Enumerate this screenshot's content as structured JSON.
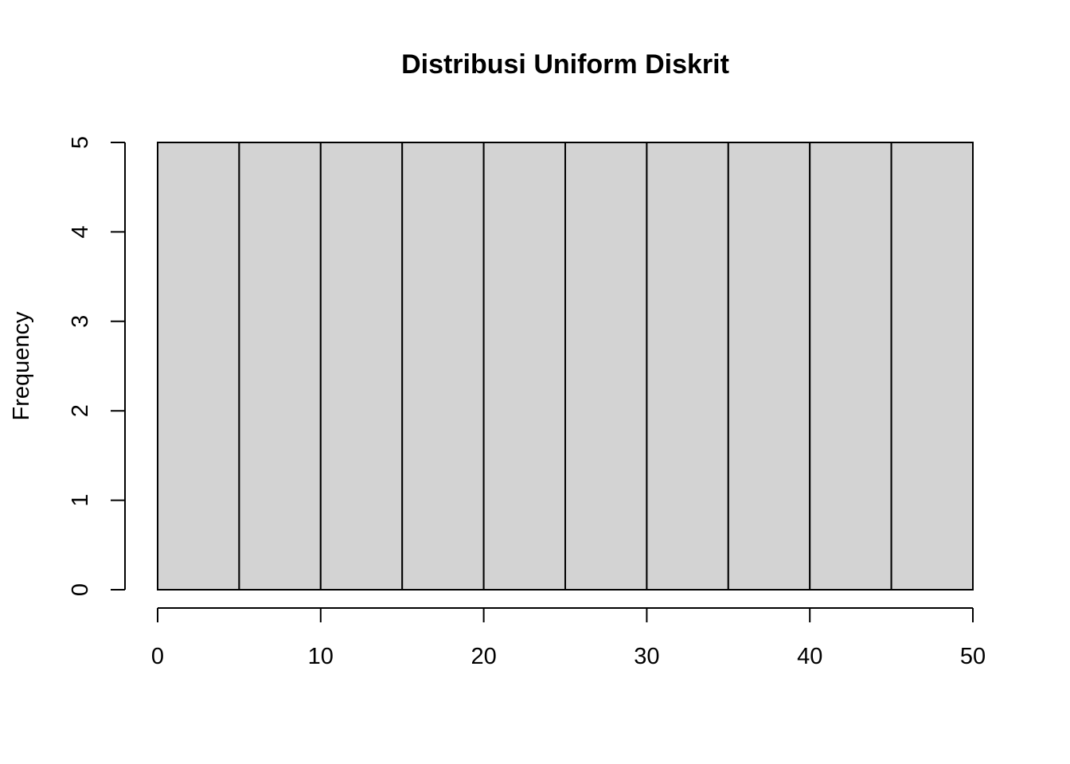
{
  "chart_data": {
    "type": "bar",
    "title": "Distribusi Uniform Diskrit",
    "xlabel": "",
    "ylabel": "Frequency",
    "bins": [
      {
        "start": 0,
        "end": 5,
        "count": 5
      },
      {
        "start": 5,
        "end": 10,
        "count": 5
      },
      {
        "start": 10,
        "end": 15,
        "count": 5
      },
      {
        "start": 15,
        "end": 20,
        "count": 5
      },
      {
        "start": 20,
        "end": 25,
        "count": 5
      },
      {
        "start": 25,
        "end": 30,
        "count": 5
      },
      {
        "start": 30,
        "end": 35,
        "count": 5
      },
      {
        "start": 35,
        "end": 40,
        "count": 5
      },
      {
        "start": 40,
        "end": 45,
        "count": 5
      },
      {
        "start": 45,
        "end": 50,
        "count": 5
      }
    ],
    "xlim": [
      0,
      50
    ],
    "ylim": [
      0,
      5
    ],
    "x_ticks": [
      0,
      10,
      20,
      30,
      40,
      50
    ],
    "y_ticks": [
      0,
      1,
      2,
      3,
      4,
      5
    ],
    "grid": false,
    "bar_color": "#d3d3d3",
    "bar_edge_color": "#000000"
  }
}
